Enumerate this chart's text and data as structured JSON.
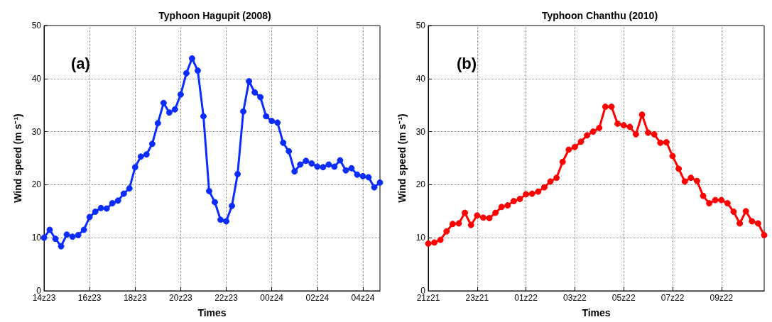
{
  "chart_data": [
    {
      "type": "line",
      "title": "Typhoon Hagupit (2008)",
      "xlabel": "Times",
      "ylabel": "Wind speed (m s⁻¹)",
      "annotations": [
        "(a)"
      ],
      "categories": [
        "14z23",
        null,
        null,
        null,
        null,
        null,
        null,
        null,
        "16z23",
        null,
        null,
        null,
        null,
        null,
        null,
        null,
        "18z23",
        null,
        null,
        null,
        null,
        null,
        null,
        null,
        "20z23",
        null,
        null,
        null,
        null,
        null,
        null,
        null,
        "22z23",
        null,
        null,
        null,
        null,
        null,
        null,
        null,
        "00z24",
        null,
        null,
        null,
        null,
        null,
        null,
        null,
        "02z24",
        null,
        null,
        null,
        null,
        null,
        null,
        null,
        "04z24",
        null,
        null,
        null
      ],
      "series": [
        {
          "color": "#0a2cff",
          "values": [
            10.0,
            11.5,
            9.8,
            8.4,
            10.6,
            10.2,
            10.5,
            11.5,
            13.9,
            14.9,
            15.6,
            15.5,
            16.5,
            17.0,
            18.3,
            19.3,
            23.3,
            25.3,
            25.7,
            27.7,
            31.6,
            35.4,
            33.6,
            34.2,
            37.0,
            41.0,
            43.8,
            41.5,
            32.9,
            18.8,
            16.7,
            13.4,
            13.1,
            16.0,
            22.0,
            33.8,
            39.5,
            37.4,
            36.5,
            32.9,
            32.0,
            31.7,
            27.9,
            26.3,
            22.5,
            23.8,
            24.5,
            24.0,
            23.4,
            23.3,
            23.8,
            23.4,
            24.6,
            22.7,
            23.1,
            21.9,
            21.6,
            21.4,
            19.5,
            20.4
          ]
        }
      ],
      "ylim": [
        0,
        50
      ],
      "yticks": [
        0,
        10,
        20,
        30,
        40,
        50
      ],
      "grid": true,
      "marker": "circle",
      "line_style": "solid"
    },
    {
      "type": "line",
      "title": "Typhoon Chanthu (2010)",
      "xlabel": "Times",
      "ylabel": "Wind speed (m s⁻¹)",
      "annotations": [
        "(b)"
      ],
      "categories": [
        "21z21",
        null,
        null,
        null,
        null,
        null,
        null,
        null,
        "23z21",
        null,
        null,
        null,
        null,
        null,
        null,
        null,
        "01z22",
        null,
        null,
        null,
        null,
        null,
        null,
        null,
        "03z22",
        null,
        null,
        null,
        null,
        null,
        null,
        null,
        "05z22",
        null,
        null,
        null,
        null,
        null,
        null,
        null,
        "07z22",
        null,
        null,
        null,
        null,
        null,
        null,
        null,
        "09z22",
        null,
        null,
        null,
        null,
        null,
        null,
        null
      ],
      "series": [
        {
          "color": "#ff0000",
          "values": [
            8.9,
            9.1,
            9.6,
            11.2,
            12.6,
            12.7,
            14.7,
            12.4,
            14.2,
            13.8,
            13.7,
            14.7,
            15.8,
            16.1,
            16.9,
            17.3,
            18.2,
            18.3,
            18.7,
            19.5,
            20.6,
            21.3,
            24.3,
            26.6,
            27.1,
            28.1,
            29.3,
            30.0,
            30.7,
            34.7,
            34.7,
            31.5,
            31.2,
            30.9,
            29.5,
            33.2,
            29.8,
            29.5,
            27.9,
            28.0,
            25.4,
            23.0,
            20.6,
            21.3,
            20.7,
            17.9,
            16.5,
            17.1,
            17.1,
            16.5,
            14.9,
            12.7,
            15.0,
            13.1,
            12.7,
            10.5
          ]
        }
      ],
      "ylim": [
        0,
        50
      ],
      "yticks": [
        0,
        10,
        20,
        30,
        40,
        50
      ],
      "grid": true,
      "marker": "circle",
      "line_style": "solid"
    }
  ]
}
